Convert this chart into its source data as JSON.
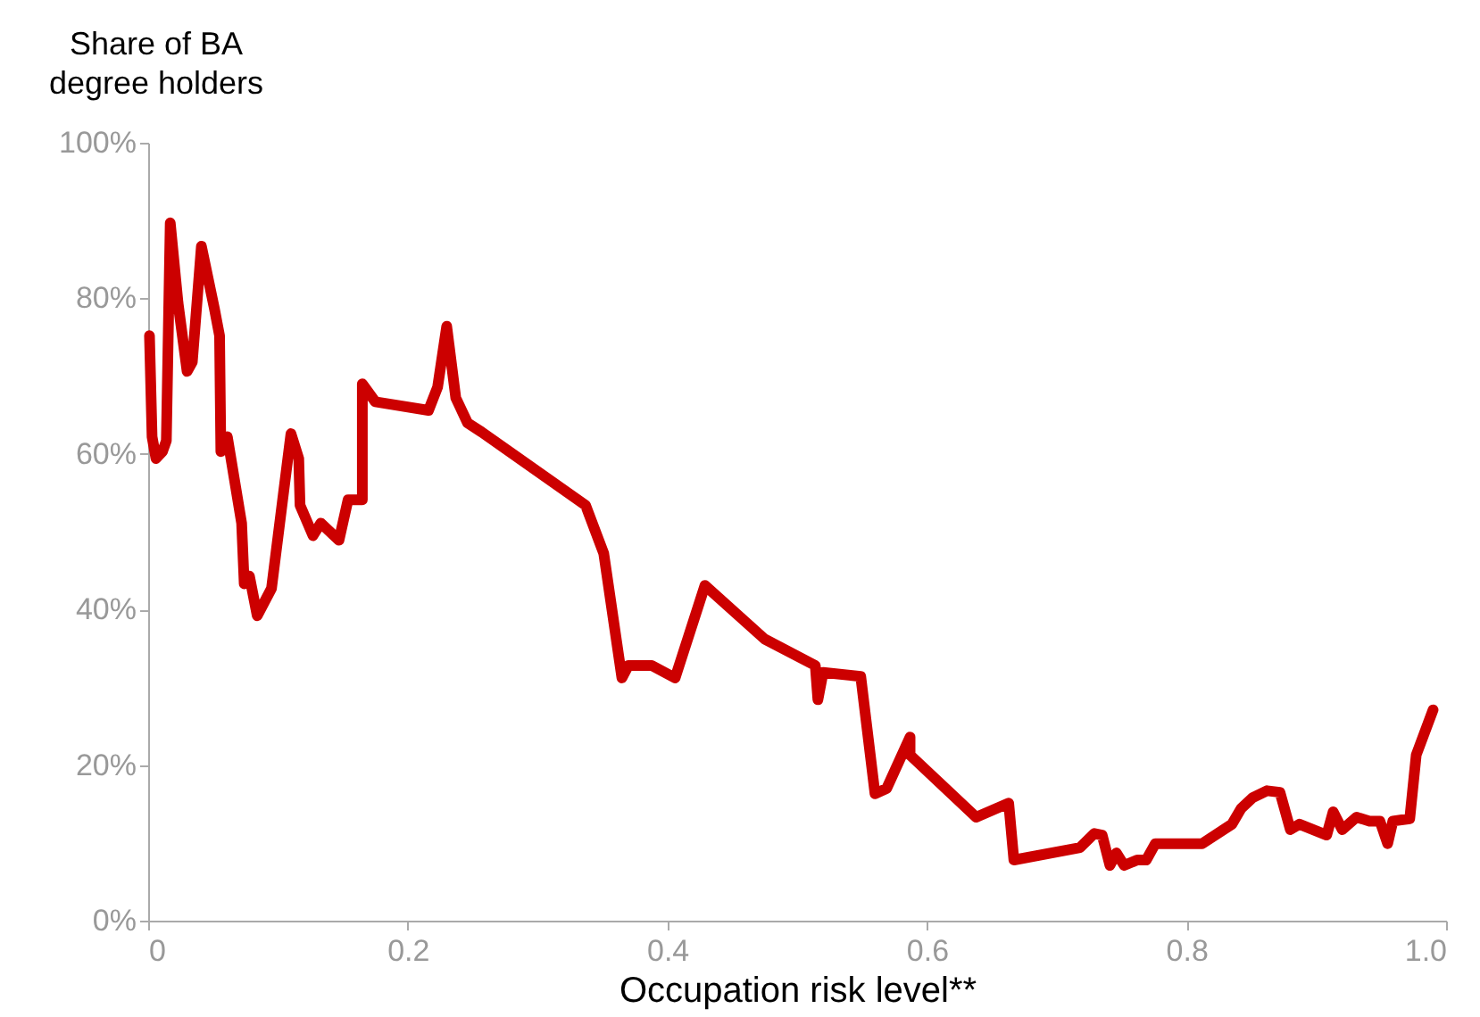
{
  "chart_data": {
    "type": "line",
    "xlabel": "Occupation risk level**",
    "ylabel": "Share of BA\ndegree holders",
    "x": [
      0.001,
      0.003,
      0.006,
      0.011,
      0.014,
      0.017,
      0.023,
      0.03,
      0.034,
      0.041,
      0.051,
      0.055,
      0.056,
      0.061,
      0.072,
      0.074,
      0.078,
      0.084,
      0.095,
      0.11,
      0.116,
      0.117,
      0.127,
      0.133,
      0.147,
      0.154,
      0.165,
      0.165,
      0.175,
      0.216,
      0.223,
      0.23,
      0.237,
      0.246,
      0.257,
      0.337,
      0.351,
      0.365,
      0.37,
      0.388,
      0.406,
      0.429,
      0.475,
      0.514,
      0.516,
      0.52,
      0.549,
      0.56,
      0.569,
      0.587,
      0.587,
      0.638,
      0.663,
      0.667,
      0.718,
      0.729,
      0.735,
      0.741,
      0.746,
      0.752,
      0.762,
      0.769,
      0.776,
      0.812,
      0.835,
      0.842,
      0.851,
      0.862,
      0.872,
      0.88,
      0.887,
      0.908,
      0.913,
      0.92,
      0.931,
      0.941,
      0.949,
      0.955,
      0.959,
      0.972,
      0.977,
      0.99
    ],
    "series": [
      {
        "color": "#cc0000",
        "values": [
          75.2,
          62.2,
          59.4,
          60.3,
          61.7,
          89.7,
          79.4,
          70.6,
          71.8,
          86.7,
          78.7,
          75.2,
          60.3,
          62.2,
          51.1,
          43.3,
          44.3,
          39.2,
          42.7,
          62.6,
          59.4,
          53.4,
          49.5,
          51.1,
          48.9,
          54.1,
          54.1,
          69.0,
          66.7,
          65.6,
          68.6,
          76.4,
          67.2,
          64.0,
          62.8,
          53.4,
          47.2,
          31.2,
          32.8,
          32.8,
          31.2,
          43.1,
          36.2,
          32.8,
          28.4,
          31.9,
          31.4,
          16.3,
          17.0,
          23.6,
          21.3,
          13.3,
          15.1,
          7.8,
          9.4,
          11.2,
          11.0,
          7.1,
          8.7,
          7.1,
          7.8,
          7.8,
          9.9,
          9.9,
          12.4,
          14.4,
          15.8,
          16.7,
          16.5,
          11.7,
          12.4,
          11.0,
          14.0,
          11.7,
          13.3,
          12.8,
          12.8,
          9.9,
          12.8,
          13.1,
          21.3,
          27.1
        ]
      }
    ],
    "xlim": [
      0,
      1
    ],
    "xticks": [
      0,
      0.2,
      0.4,
      0.6,
      0.8,
      {
        "value": 1,
        "label": "1.0"
      }
    ],
    "ylim": [
      0,
      100
    ],
    "yticks": [
      {
        "value": 0,
        "label": "0%"
      },
      {
        "value": 20,
        "label": "20%"
      },
      {
        "value": 40,
        "label": "40%"
      },
      {
        "value": 60,
        "label": "60%"
      },
      {
        "value": 80,
        "label": "80%"
      },
      {
        "value": 100,
        "label": "100%"
      }
    ],
    "grid": false,
    "legend": false,
    "marker": "none",
    "line_style": "solid"
  }
}
